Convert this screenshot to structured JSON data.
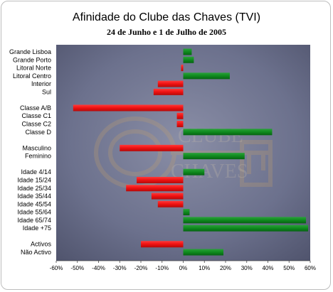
{
  "chart_data": {
    "type": "bar",
    "orientation": "horizontal",
    "title": "Afinidade do Clube das Chaves  (TVI)",
    "subtitle": "24 de Junho e 1 de Julho de 2005",
    "xlim": [
      -60,
      60
    ],
    "x_ticks": [
      "-60%",
      "-50%",
      "-40%",
      "-30%",
      "-20%",
      "-10%",
      "0%",
      "10%",
      "20%",
      "30%",
      "40%",
      "50%",
      "60%"
    ],
    "positive_color": "#0f8a1e",
    "negative_color": "#ee1111",
    "categories": [
      {
        "label": "Grande Lisboa",
        "value": 4
      },
      {
        "label": "Grande Porto",
        "value": 5
      },
      {
        "label": "Litoral Norte",
        "value": -1
      },
      {
        "label": "Litoral Centro",
        "value": 22
      },
      {
        "label": "Interior",
        "value": -12
      },
      {
        "label": "Sul",
        "value": -14
      },
      {
        "label": "",
        "value": null
      },
      {
        "label": "Classe A/B",
        "value": -52
      },
      {
        "label": "Classe C1",
        "value": -3
      },
      {
        "label": "Classe C2",
        "value": -3
      },
      {
        "label": "Classe D",
        "value": 42
      },
      {
        "label": "",
        "value": null
      },
      {
        "label": "Masculino",
        "value": -30
      },
      {
        "label": "Feminino",
        "value": 29
      },
      {
        "label": "",
        "value": null
      },
      {
        "label": "Idade 4/14",
        "value": 10
      },
      {
        "label": "Idade 15/24",
        "value": -22
      },
      {
        "label": "Idade 25/34",
        "value": -27
      },
      {
        "label": "Idade 35/44",
        "value": -15
      },
      {
        "label": "Idade 45/54",
        "value": -12
      },
      {
        "label": "Idade 55/64",
        "value": 3
      },
      {
        "label": "Idade 65/74",
        "value": 58
      },
      {
        "label": "Idade +75",
        "value": 59
      },
      {
        "label": "",
        "value": null
      },
      {
        "label": "Activos",
        "value": -20
      },
      {
        "label": "Não Activo",
        "value": 19
      }
    ]
  }
}
